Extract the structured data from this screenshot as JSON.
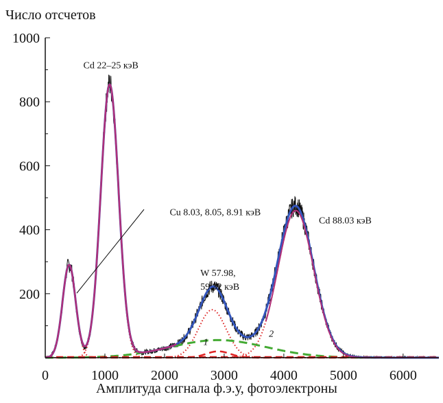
{
  "chart_data": {
    "type": "line",
    "ylabel": "Число отсчетов",
    "xlabel": "Амплитуда сигнала ф.э.у, фотоэлектроны",
    "xlim": [
      0,
      6600
    ],
    "ylim": [
      0,
      1000
    ],
    "xticks": [
      "0",
      "1000",
      "2000",
      "3000",
      "4000",
      "5000",
      "6000"
    ],
    "yticks": [
      "200",
      "400",
      "600",
      "800",
      "1000"
    ],
    "grid": false,
    "colors": {
      "data": "#111111",
      "fit": "#3355bb",
      "component": "#b0307a",
      "dotted": "#dd2222",
      "dashed_red": "#dd2222",
      "dashed_green": "#44aa33"
    },
    "peaks": [
      {
        "center": 400,
        "height": 290,
        "sigma": 110
      },
      {
        "center": 1080,
        "height": 850,
        "sigma": 150
      },
      {
        "center": 2800,
        "height": 150,
        "sigma": 230
      },
      {
        "center": 4200,
        "height": 460,
        "sigma": 300
      }
    ],
    "background_curves": [
      {
        "id": "1",
        "center": 2900,
        "height": 20,
        "sigma": 200
      },
      {
        "id": "2",
        "center": 2900,
        "height": 55,
        "sigma": 800
      }
    ],
    "annotations": [
      {
        "text": "Cd 22–25 кэВ",
        "x": 1100,
        "y": 905
      },
      {
        "text": "Cu 8.03, 8.05, 8.91 кэВ",
        "x": 2850,
        "y": 445
      },
      {
        "text": "Cd 88.03 кэВ",
        "x": 5030,
        "y": 420
      },
      {
        "text": "W 57.98,",
        "x": 2600,
        "y": 255
      },
      {
        "text": "59.32 кэВ",
        "x": 2600,
        "y": 212
      },
      {
        "text": "1",
        "x": 2650,
        "y": 40
      },
      {
        "text": "2",
        "x": 3750,
        "y": 65
      }
    ]
  }
}
